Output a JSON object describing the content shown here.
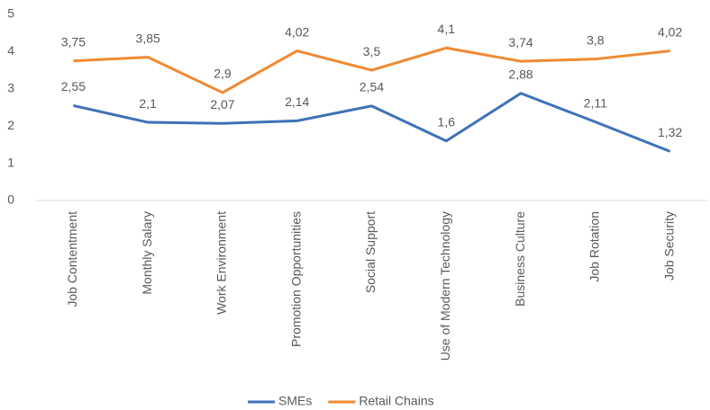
{
  "chart_data": {
    "type": "line",
    "categories": [
      "Job Contentment",
      "Monthly Salary",
      "Work Environment",
      "Promotion Opportunities",
      "Social Support",
      "Use of Modern Technology",
      "Business Culture",
      "Job Rotation",
      "Job Security"
    ],
    "series": [
      {
        "name": "SMEs",
        "color": "#3e72b8",
        "values": [
          2.55,
          2.1,
          2.07,
          2.14,
          2.54,
          1.6,
          2.88,
          2.11,
          1.32
        ],
        "value_labels": [
          "2,55",
          "2,1",
          "2,07",
          "2,14",
          "2,54",
          "1,6",
          "2,88",
          "2,11",
          "1,32"
        ]
      },
      {
        "name": "Retail Chains",
        "color": "#f08a32",
        "values": [
          3.75,
          3.85,
          2.9,
          4.02,
          3.5,
          4.1,
          3.74,
          3.8,
          4.02
        ],
        "value_labels": [
          "3,75",
          "3,85",
          "2,9",
          "4,02",
          "3,5",
          "4,1",
          "3,74",
          "3,8",
          "4,02"
        ]
      }
    ],
    "ylim": [
      0,
      5
    ],
    "yticks": [
      0,
      1,
      2,
      3,
      4,
      5
    ],
    "grid": false,
    "legend": "bottom"
  }
}
